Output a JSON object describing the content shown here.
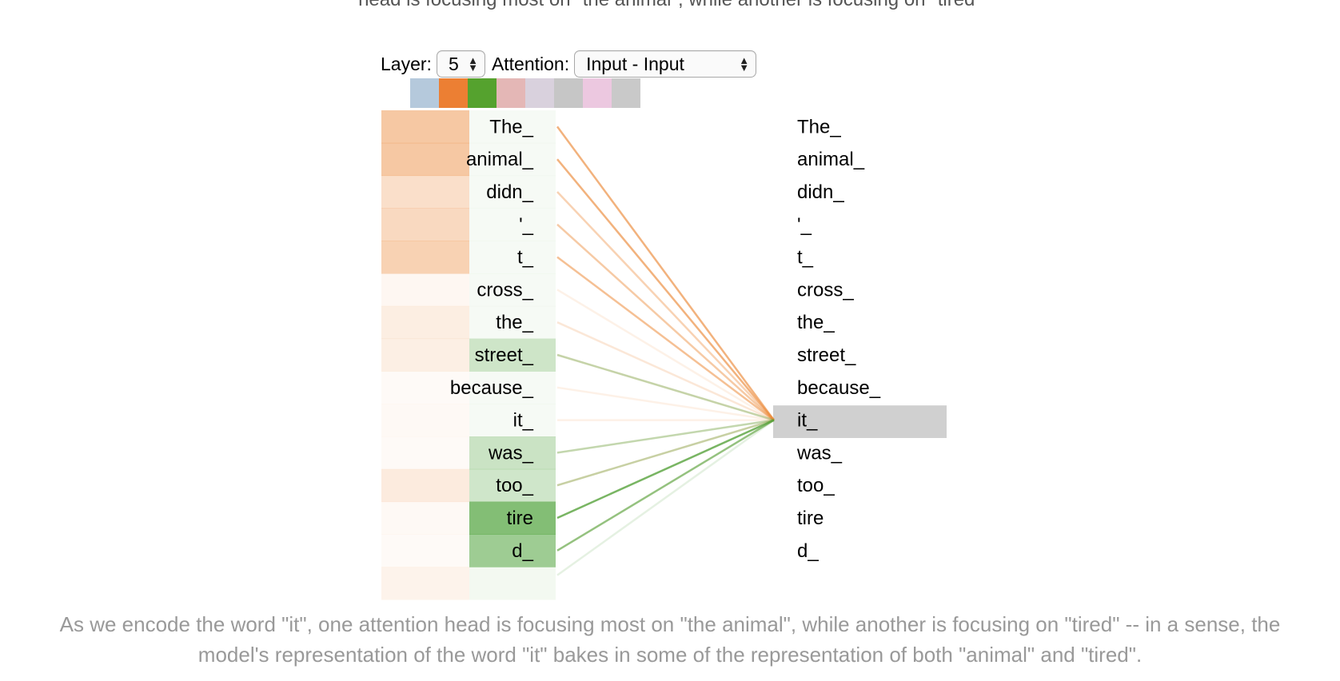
{
  "header": {
    "cut_text": "head is focusing most on \"the animal\", while another is focusing on \"tired\""
  },
  "controls": {
    "layer_label": "Layer:",
    "layer_value": "5",
    "attention_label": "Attention:",
    "attention_value": "Input - Input"
  },
  "heads": {
    "colors": [
      "#b5c9dc",
      "#ec7f33",
      "#55a22e",
      "#e4b7b6",
      "#d9d1dd",
      "#c6c6c6",
      "#ecc8e0",
      "#c9c9c9"
    ]
  },
  "tokens": [
    "The_",
    "animal_",
    "didn_",
    "'_",
    "t_",
    "cross_",
    "the_",
    "street_",
    "because_",
    "it_",
    "was_",
    "too_",
    "tire",
    "d_",
    ""
  ],
  "selected_token": "it_",
  "attention": {
    "orange_head": [
      0.55,
      0.55,
      0.32,
      0.38,
      0.45,
      0.08,
      0.17,
      0.16,
      0.03,
      0.06,
      0.03,
      0.2,
      0.06,
      0.05,
      0.12
    ],
    "green_head": [
      0.0,
      0.05,
      0.02,
      0.0,
      0.0,
      0.05,
      0.03,
      0.28,
      0.0,
      0.02,
      0.3,
      0.27,
      0.7,
      0.55,
      0.07
    ],
    "colors": {
      "orange": "#ec8a3a",
      "green": "#4fa33a",
      "selected_bg": "#d0d0d0"
    }
  },
  "caption": {
    "line1": "As we encode the word \"it\", one attention head is focusing most on \"the animal\", while another is focusing on \"tired\" -- in a sense, the",
    "line2": "model's representation of the word \"it\" bakes in some of the representation of both \"animal\" and \"tired\"."
  }
}
